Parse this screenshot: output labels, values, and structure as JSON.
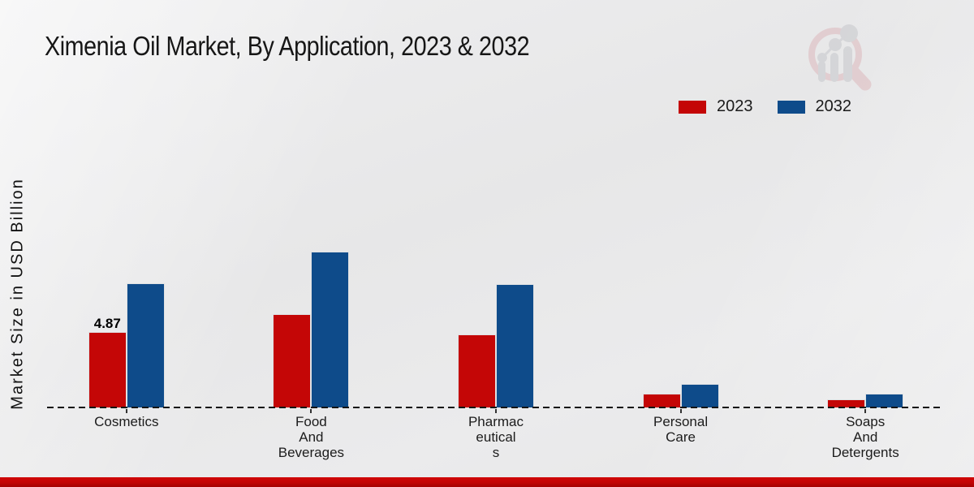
{
  "page": {
    "title": "Ximenia Oil Market, By Application, 2023 & 2032",
    "y_axis_label": "Market Size in USD Billion"
  },
  "legend": {
    "items": [
      {
        "label": "2023",
        "color": "#c40606"
      },
      {
        "label": "2032",
        "color": "#0e4b8a"
      }
    ]
  },
  "colors": {
    "series_2023": "#c40606",
    "series_2032": "#0e4b8a",
    "footer_bar": "#c20404",
    "background": "#e9e9ea",
    "axis_line": "#141414",
    "logo_pink": "#ddb8bd",
    "logo_gray": "#c6c7cb"
  },
  "icons": {
    "watermark": "magnifier-bar-chart-logo"
  },
  "chart_data": {
    "type": "bar",
    "title": "Ximenia Oil Market, By Application, 2023 & 2032",
    "xlabel": "",
    "ylabel": "Market Size in USD Billion",
    "categories": [
      "Cosmetics",
      "Food And Beverages",
      "Pharmaceuticals",
      "Personal Care",
      "Soaps And Detergents"
    ],
    "category_label_lines": [
      [
        "Cosmetics"
      ],
      [
        "Food",
        "And",
        "Beverages"
      ],
      [
        "Pharmac",
        "eutical",
        "s"
      ],
      [
        "Personal",
        "Care"
      ],
      [
        "Soaps",
        "And",
        "Detergents"
      ]
    ],
    "series": [
      {
        "name": "2023",
        "color": "#c40606",
        "values": [
          4.87,
          6.0,
          4.7,
          0.9,
          0.52
        ]
      },
      {
        "name": "2032",
        "color": "#0e4b8a",
        "values": [
          8.0,
          10.05,
          7.95,
          1.52,
          0.9
        ]
      }
    ],
    "data_labels": [
      {
        "series": "2023",
        "category": "Cosmetics",
        "text": "4.87"
      }
    ],
    "units": "USD Billion",
    "baseline_value": 0,
    "grid": false,
    "axis_style": "dashed-zero-line",
    "legend_position": "top-right"
  }
}
